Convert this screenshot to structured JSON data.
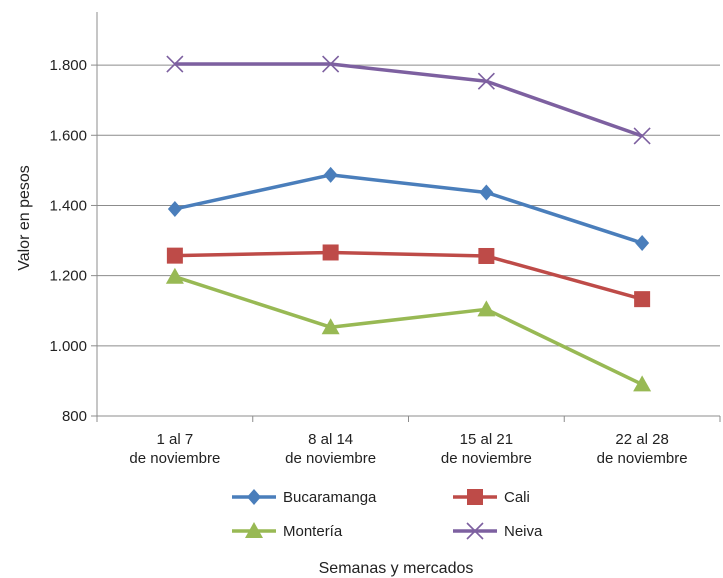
{
  "chart_data": {
    "type": "line",
    "title": "",
    "xlabel": "Semanas y mercados",
    "ylabel": "Valor en pesos",
    "categories": [
      [
        "1 al 7",
        "de noviembre"
      ],
      [
        "8 al 14",
        "de noviembre"
      ],
      [
        "15 al 21",
        "de noviembre"
      ],
      [
        "22 al 28",
        "de noviembre"
      ]
    ],
    "ylim": [
      800,
      1900
    ],
    "yticks": [
      800,
      1000,
      1200,
      1400,
      1600,
      1800
    ],
    "ytick_labels": [
      "800",
      "1.000",
      "1.200",
      "1.400",
      "1.600",
      "1.800"
    ],
    "grid": true,
    "legend_placement": "bottom",
    "series": [
      {
        "name": "Bucaramanga",
        "values": [
          1390,
          1487,
          1437,
          1293
        ],
        "color": "#4a7ebb",
        "marker": "diamond"
      },
      {
        "name": "Cali",
        "values": [
          1257,
          1266,
          1256,
          1133
        ],
        "color": "#be4b48",
        "marker": "square"
      },
      {
        "name": "Montería",
        "values": [
          1197,
          1053,
          1104,
          890
        ],
        "color": "#98b954",
        "marker": "triangle"
      },
      {
        "name": "Neiva",
        "values": [
          1803,
          1803,
          1754,
          1598
        ],
        "color": "#7d60a0",
        "marker": "x"
      }
    ]
  }
}
